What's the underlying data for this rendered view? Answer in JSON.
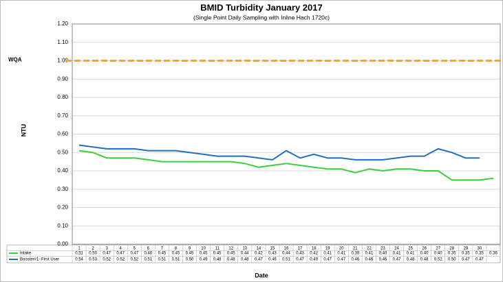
{
  "chart_data": {
    "type": "line",
    "title": "BMID Turbidity January 2017",
    "subtitle": "(Single Point Daily Sampling with Inline Hach 1720c)",
    "y_label": "NTU",
    "x_label": "Date",
    "categories": [
      "1",
      "2",
      "3",
      "4",
      "5",
      "6",
      "7",
      "8",
      "9",
      "10",
      "11",
      "12",
      "13",
      "14",
      "15",
      "16",
      "17",
      "18",
      "19",
      "20",
      "21",
      "22",
      "23",
      "24",
      "25",
      "26",
      "27",
      "28",
      "29",
      "30",
      null
    ],
    "series": [
      {
        "name": "Intake",
        "color": "#3ccf3c",
        "values": [
          0.51,
          0.5,
          0.47,
          0.47,
          0.47,
          0.46,
          0.45,
          0.45,
          0.45,
          0.45,
          0.45,
          0.45,
          0.44,
          0.42,
          0.43,
          0.44,
          0.43,
          0.42,
          0.41,
          0.41,
          0.39,
          0.41,
          0.4,
          0.41,
          0.41,
          0.4,
          0.4,
          0.35,
          0.35,
          0.35,
          0.36
        ],
        "value_labels": [
          "0.51",
          "0.50",
          "0.47",
          "0.47",
          "0.47",
          "0.46",
          "0.45",
          "0.45",
          "0.45",
          "0.45",
          "0.45",
          "0.45",
          "0.44",
          "0.42",
          "0.43",
          "0.44",
          "0.43",
          "0.42",
          "0.41",
          "0.41",
          "0.39",
          "0.41",
          "0.40",
          "0.41",
          "0.41",
          "0.40",
          "0.40",
          "0.35",
          "0.35",
          "0.35",
          "0.36"
        ]
      },
      {
        "name": "Booster#1- First User",
        "color": "#1f6fc0",
        "values": [
          0.54,
          0.53,
          0.52,
          0.52,
          0.52,
          0.51,
          0.51,
          0.51,
          0.5,
          0.49,
          0.48,
          0.48,
          0.48,
          0.47,
          0.46,
          0.51,
          0.47,
          0.49,
          0.47,
          0.47,
          0.46,
          0.46,
          0.46,
          0.47,
          0.48,
          0.48,
          0.52,
          0.5,
          0.47,
          0.47,
          null
        ],
        "value_labels": [
          "0.54",
          "0.53",
          "0.52",
          "0.52",
          "0.52",
          "0.51",
          "0.51",
          "0.51",
          "0.50",
          "0.49",
          "0.48",
          "0.48",
          "0.48",
          "0.47",
          "0.46",
          "0.51",
          "0.47",
          "0.49",
          "0.47",
          "0.47",
          "0.46",
          "0.46",
          "0.46",
          "0.47",
          "0.48",
          "0.48",
          "0.52",
          "0.50",
          "0.47",
          "0.47",
          null
        ]
      }
    ],
    "threshold": {
      "label": "WQA",
      "value": 1,
      "color": "#f7a530"
    },
    "ylim": [
      0,
      1.2
    ],
    "yticks": [
      {
        "value": 0,
        "label": "0.00"
      },
      {
        "value": 0.1,
        "label": "0.10"
      },
      {
        "value": 0.2,
        "label": "0.20"
      },
      {
        "value": 0.3,
        "label": "0.30"
      },
      {
        "value": 0.4,
        "label": "0.40"
      },
      {
        "value": 0.5,
        "label": "0.50"
      },
      {
        "value": 0.6,
        "label": "0.60"
      },
      {
        "value": 0.7,
        "label": "0.70"
      },
      {
        "value": 0.8,
        "label": "0.80"
      },
      {
        "value": 0.9,
        "label": "0.90"
      },
      {
        "value": 1,
        "label": "1.00"
      },
      {
        "value": 1.1,
        "label": "1.10"
      },
      {
        "value": 1.2,
        "label": "1.20"
      }
    ],
    "grid": true
  }
}
